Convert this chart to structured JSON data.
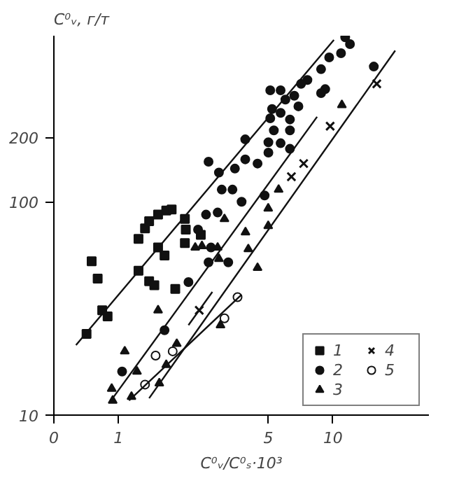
{
  "chart_data": {
    "type": "scatter",
    "xlabel": "C⁰ᵥ/C⁰ₛ·10³",
    "ylabel": "C⁰ᵥ, г/т",
    "log": "xy",
    "grid": false,
    "legend": "bottom right",
    "xlim": [
      0.5,
      28
    ],
    "ylim": [
      10,
      600
    ],
    "xticks": [
      {
        "value": 0.5,
        "label": "0"
      },
      1,
      5,
      10
    ],
    "yticks": [
      10,
      100,
      200
    ],
    "series": [
      {
        "name": "1",
        "color": "#111111",
        "marker": "square",
        "x": [
          0.75,
          0.8,
          1.24,
          1.39,
          1.47,
          1.24,
          1.33,
          1.39,
          1.53,
          1.67,
          1.77,
          2.04,
          2.06,
          2.42,
          1.53,
          1.64,
          2.04,
          1.84,
          0.84,
          0.89,
          0.71
        ],
        "values": [
          52.6,
          43.6,
          47.5,
          42.4,
          40.6,
          67,
          75,
          81,
          87,
          91,
          92,
          83,
          74,
          70,
          61,
          56,
          64,
          39,
          31,
          29,
          24
        ]
      },
      {
        "name": "2",
        "color": "#111111",
        "marker": "circle",
        "x": [
          11.4,
          12.0,
          10.9,
          9.6,
          8.8,
          15.5,
          9.2,
          8.8,
          7.6,
          7.1,
          5.1,
          5.7,
          6.6,
          6.0,
          6.9,
          5.2,
          5.7,
          5.1,
          6.3,
          5.3,
          6.3,
          5.0,
          3.9,
          5.7,
          6.3,
          5.0,
          2.63,
          2.94,
          3.49,
          3.9,
          4.45,
          3.03,
          3.4,
          3.75,
          2.56,
          2.9,
          2.35,
          2.7,
          2.63,
          3.25,
          2.12,
          4.8,
          1.64,
          1.04
        ],
        "values": [
          590,
          548,
          497,
          475,
          418,
          430,
          337,
          323,
          372,
          357,
          333,
          333,
          314,
          301,
          280,
          272,
          261,
          246,
          243,
          216,
          216,
          190,
          196,
          188,
          177,
          170,
          154,
          137,
          143,
          158,
          151,
          114,
          114,
          100,
          87,
          89,
          74,
          61,
          52,
          52,
          42,
          107,
          25,
          16
        ]
      },
      {
        "name": "3",
        "color": "#111111",
        "marker": "triangle",
        "x": [
          5.58,
          4.99,
          3.91,
          4.99,
          4.03,
          4.45,
          3.12,
          2.9,
          2.45,
          2.28,
          2.94,
          11.0,
          1.53,
          1.07,
          0.93,
          0.94,
          1.15,
          1.55,
          1.87,
          2.99,
          1.22,
          1.67
        ],
        "values": [
          114,
          93,
          72,
          77,
          60,
          49,
          83,
          61,
          62,
          61,
          54,
          284,
          31,
          19.9,
          13.3,
          11.7,
          12.2,
          14.1,
          21.6,
          26.4,
          16.0,
          17.2
        ]
      },
      {
        "name": "4",
        "color": "#111111",
        "marker": "cross",
        "x": [
          16.0,
          9.7,
          6.4,
          7.3,
          2.38
        ],
        "values": [
          357,
          226,
          131,
          151,
          31
        ]
      },
      {
        "name": "5",
        "color": "#111111",
        "marker": "open_circle",
        "x": [
          3.59,
          3.12,
          1.79,
          1.49,
          1.33
        ],
        "values": [
          35.7,
          28.4,
          19.9,
          19.0,
          13.9
        ]
      },
      {
        "type": "line",
        "color": "#111111",
        "x": [
          0.634,
          10.1
        ],
        "values": [
          21.3,
          573
        ]
      },
      {
        "type": "line",
        "color": "#111111",
        "x": [
          0.94,
          8.43
        ],
        "values": [
          12.0,
          250
        ]
      },
      {
        "type": "line",
        "color": "#111111",
        "x": [
          1.39,
          19.5
        ],
        "values": [
          12.0,
          511
        ]
      },
      {
        "type": "line",
        "color": "#111111",
        "x": [
          2.12,
          2.74
        ],
        "values": [
          26.4,
          37.8
        ]
      },
      {
        "type": "line",
        "color": "#111111",
        "x": [
          1.12,
          3.75
        ],
        "values": [
          11.7,
          36.7
        ]
      }
    ]
  }
}
